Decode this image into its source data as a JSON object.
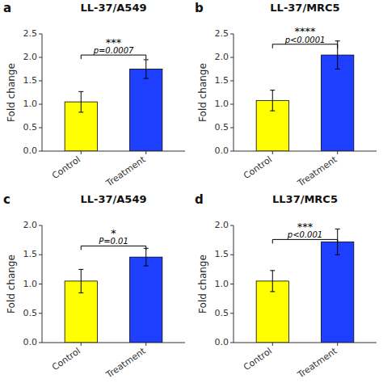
{
  "chart_data": [
    {
      "type": "bar",
      "panel_label": "a",
      "title": "LL-37/A549",
      "categories": [
        "Control",
        "Treatment"
      ],
      "values": [
        1.05,
        1.75
      ],
      "errors": [
        0.22,
        0.2
      ],
      "colors": [
        "#ffff00",
        "#1e3fff"
      ],
      "ylim": [
        0,
        2.5
      ],
      "yticks": [
        {
          "value": 0.0,
          "label": "0.0"
        },
        0.5,
        {
          "value": 1.0,
          "label": "1.0"
        },
        1.5,
        {
          "value": 2.0,
          "label": "2.0"
        },
        2.5
      ],
      "ylabel": "Fold change",
      "bracket_y": 2.05,
      "annotations": [
        "p=0.0007",
        "***"
      ],
      "grid": false
    },
    {
      "type": "bar",
      "panel_label": "b",
      "title": "LL-37/MRC5",
      "categories": [
        "Control",
        "Treatment"
      ],
      "values": [
        1.08,
        2.05
      ],
      "errors": [
        0.22,
        0.3
      ],
      "colors": [
        "#ffff00",
        "#1e3fff"
      ],
      "ylim": [
        0,
        2.5
      ],
      "yticks": [
        {
          "value": 0.0,
          "label": "0.0"
        },
        0.5,
        {
          "value": 1.0,
          "label": "1.0"
        },
        1.5,
        {
          "value": 2.0,
          "label": "2.0"
        },
        2.5
      ],
      "ylabel": "Fold change",
      "bracket_y": 2.28,
      "annotations": [
        "p<0.0001",
        "****"
      ],
      "grid": false
    },
    {
      "type": "bar",
      "panel_label": "c",
      "title": "LL-37/A549",
      "categories": [
        "Control",
        "Treatment"
      ],
      "values": [
        1.05,
        1.46
      ],
      "errors": [
        0.2,
        0.15
      ],
      "colors": [
        "#ffff00",
        "#1e3fff"
      ],
      "ylim": [
        0,
        2.0
      ],
      "yticks": [
        {
          "value": 0.0,
          "label": "0.0"
        },
        0.5,
        {
          "value": 1.0,
          "label": "1.0"
        },
        1.5,
        {
          "value": 2.0,
          "label": "2.0"
        }
      ],
      "ylabel": "Fold change",
      "bracket_y": 1.65,
      "annotations": [
        "P=0.01",
        "*"
      ],
      "grid": false
    },
    {
      "type": "bar",
      "panel_label": "d",
      "title": "LL37/MRC5",
      "categories": [
        "Control",
        "Treatment"
      ],
      "values": [
        1.05,
        1.72
      ],
      "errors": [
        0.18,
        0.22
      ],
      "colors": [
        "#ffff00",
        "#1e3fff"
      ],
      "ylim": [
        0,
        2.0
      ],
      "yticks": [
        {
          "value": 0.0,
          "label": "0.0"
        },
        0.5,
        {
          "value": 1.0,
          "label": "1.0"
        },
        1.5,
        {
          "value": 2.0,
          "label": "2.0"
        }
      ],
      "ylabel": "Fold change",
      "bracket_y": 1.76,
      "annotations": [
        "p<0.001",
        "***"
      ],
      "grid": false
    }
  ]
}
